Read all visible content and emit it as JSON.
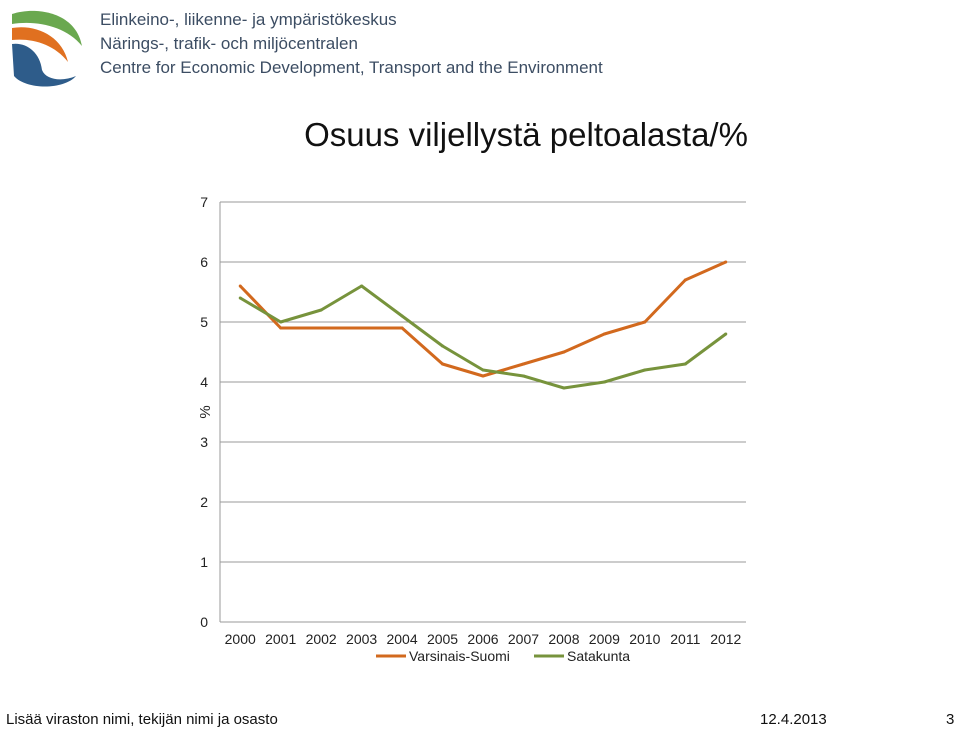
{
  "header": {
    "org_lines": [
      "Elinkeino-, liikenne- ja ympäristökeskus",
      "Närings-, trafik- och miljöcentralen",
      "Centre for Economic Development, Transport and the Environment"
    ]
  },
  "colors": {
    "orange": "#d2691e",
    "green": "#77933c",
    "axis": "#999999",
    "logo_blue": "#2e5c8a",
    "logo_green": "#6aa84f",
    "logo_orange": "#e07020"
  },
  "chart_data": {
    "type": "line",
    "title": "Osuus viljellystä peltoalasta/%",
    "ylabel": "%",
    "xlabel": "",
    "ylim": [
      0,
      7
    ],
    "yticks": [
      "0",
      "1",
      "2",
      "3",
      "4",
      "5",
      "6",
      "7"
    ],
    "categories": [
      "2000",
      "2001",
      "2002",
      "2003",
      "2004",
      "2005",
      "2006",
      "2007",
      "2008",
      "2009",
      "2010",
      "2011",
      "2012"
    ],
    "grid": "horizontal",
    "legend_position": "bottom",
    "series": [
      {
        "name": "Varsinais-Suomi",
        "color": "#d2691e",
        "values": [
          5.6,
          4.9,
          4.9,
          4.9,
          4.9,
          4.3,
          4.1,
          4.3,
          4.5,
          4.8,
          5.0,
          5.7,
          6.0
        ]
      },
      {
        "name": "Satakunta",
        "color": "#77933c",
        "values": [
          5.4,
          5.0,
          5.2,
          5.6,
          5.1,
          4.6,
          4.2,
          4.1,
          3.9,
          4.0,
          4.2,
          4.3,
          4.8
        ]
      }
    ]
  },
  "footer": {
    "left_text": "Lisää viraston nimi, tekijän nimi ja osasto",
    "date": "12.4.2013",
    "page": "3"
  }
}
